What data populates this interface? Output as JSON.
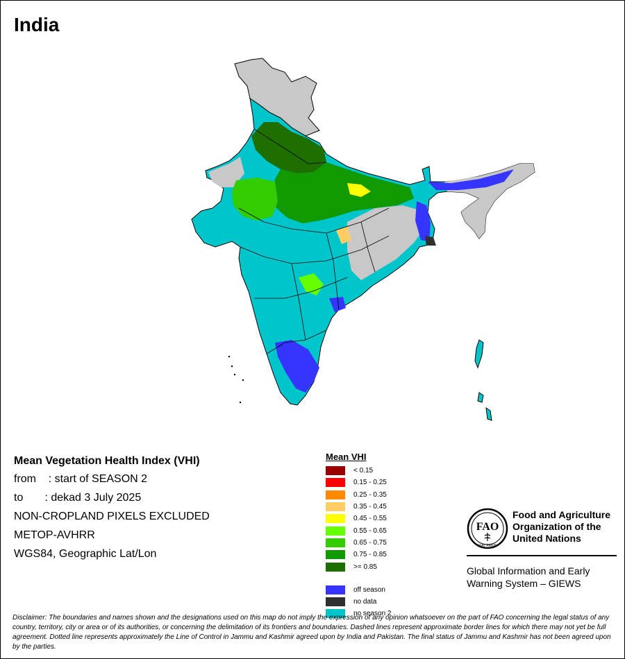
{
  "map": {
    "title": "India",
    "colors": {
      "background_country": "#c8c8c8",
      "no_season": "#00c6cc",
      "off_season": "#3535ff",
      "no_data": "#303030",
      "border": "#000000"
    }
  },
  "info": {
    "heading": "Mean Vegetation Health Index (VHI)",
    "from_line": "from    : start of SEASON 2",
    "to_line": "to       : dekad 3 July 2025",
    "mask_line": "NON-CROPLAND PIXELS EXCLUDED",
    "sensor_line": "METOP-AVHRR",
    "projection_line": "WGS84, Geographic Lat/Lon"
  },
  "legend": {
    "title": "Mean VHI",
    "classes": [
      {
        "label": "< 0.15",
        "color": "#9b0000"
      },
      {
        "label": "0.15 - 0.25",
        "color": "#ff0000"
      },
      {
        "label": "0.25 - 0.35",
        "color": "#ff8a00"
      },
      {
        "label": "0.35 - 0.45",
        "color": "#ffcc66"
      },
      {
        "label": "0.45 - 0.55",
        "color": "#ffff00"
      },
      {
        "label": "0.55 - 0.65",
        "color": "#66ff00"
      },
      {
        "label": "0.65 - 0.75",
        "color": "#33cc00"
      },
      {
        "label": "0.75 - 0.85",
        "color": "#119900"
      },
      {
        "label": ">= 0.85",
        "color": "#1f6e00"
      }
    ],
    "extra": [
      {
        "label": "off season",
        "color": "#3535ff"
      },
      {
        "label": "no data",
        "color": "#303030"
      },
      {
        "label": "no season 2",
        "color": "#00c6cc"
      }
    ]
  },
  "fao": {
    "logo_text": "FAO",
    "logo_motto": "FIAT PANIS",
    "org_line1": "Food and Agriculture",
    "org_line2": "Organization of the",
    "org_line3": "United Nations",
    "giews_line1": "Global Information and Early",
    "giews_line2": "Warning System – GIEWS"
  },
  "disclaimer": "Disclaimer: The boundaries and names shown and the designations used on this map do not imply the expression of any opinion whatsoever on the part of FAO concerning the legal status of any country, territory, city or area or of its authorities, or concerning the delimitation of its frontiers and boundaries. Dashed lines represent approximate border lines for which there may not yet be full agreement. Dotted line represents approximately the Line of Control in Jammu and Kashmir agreed upon by India and Pakistan. The final status of Jammu and Kashmir has not been agreed upon by the parties."
}
